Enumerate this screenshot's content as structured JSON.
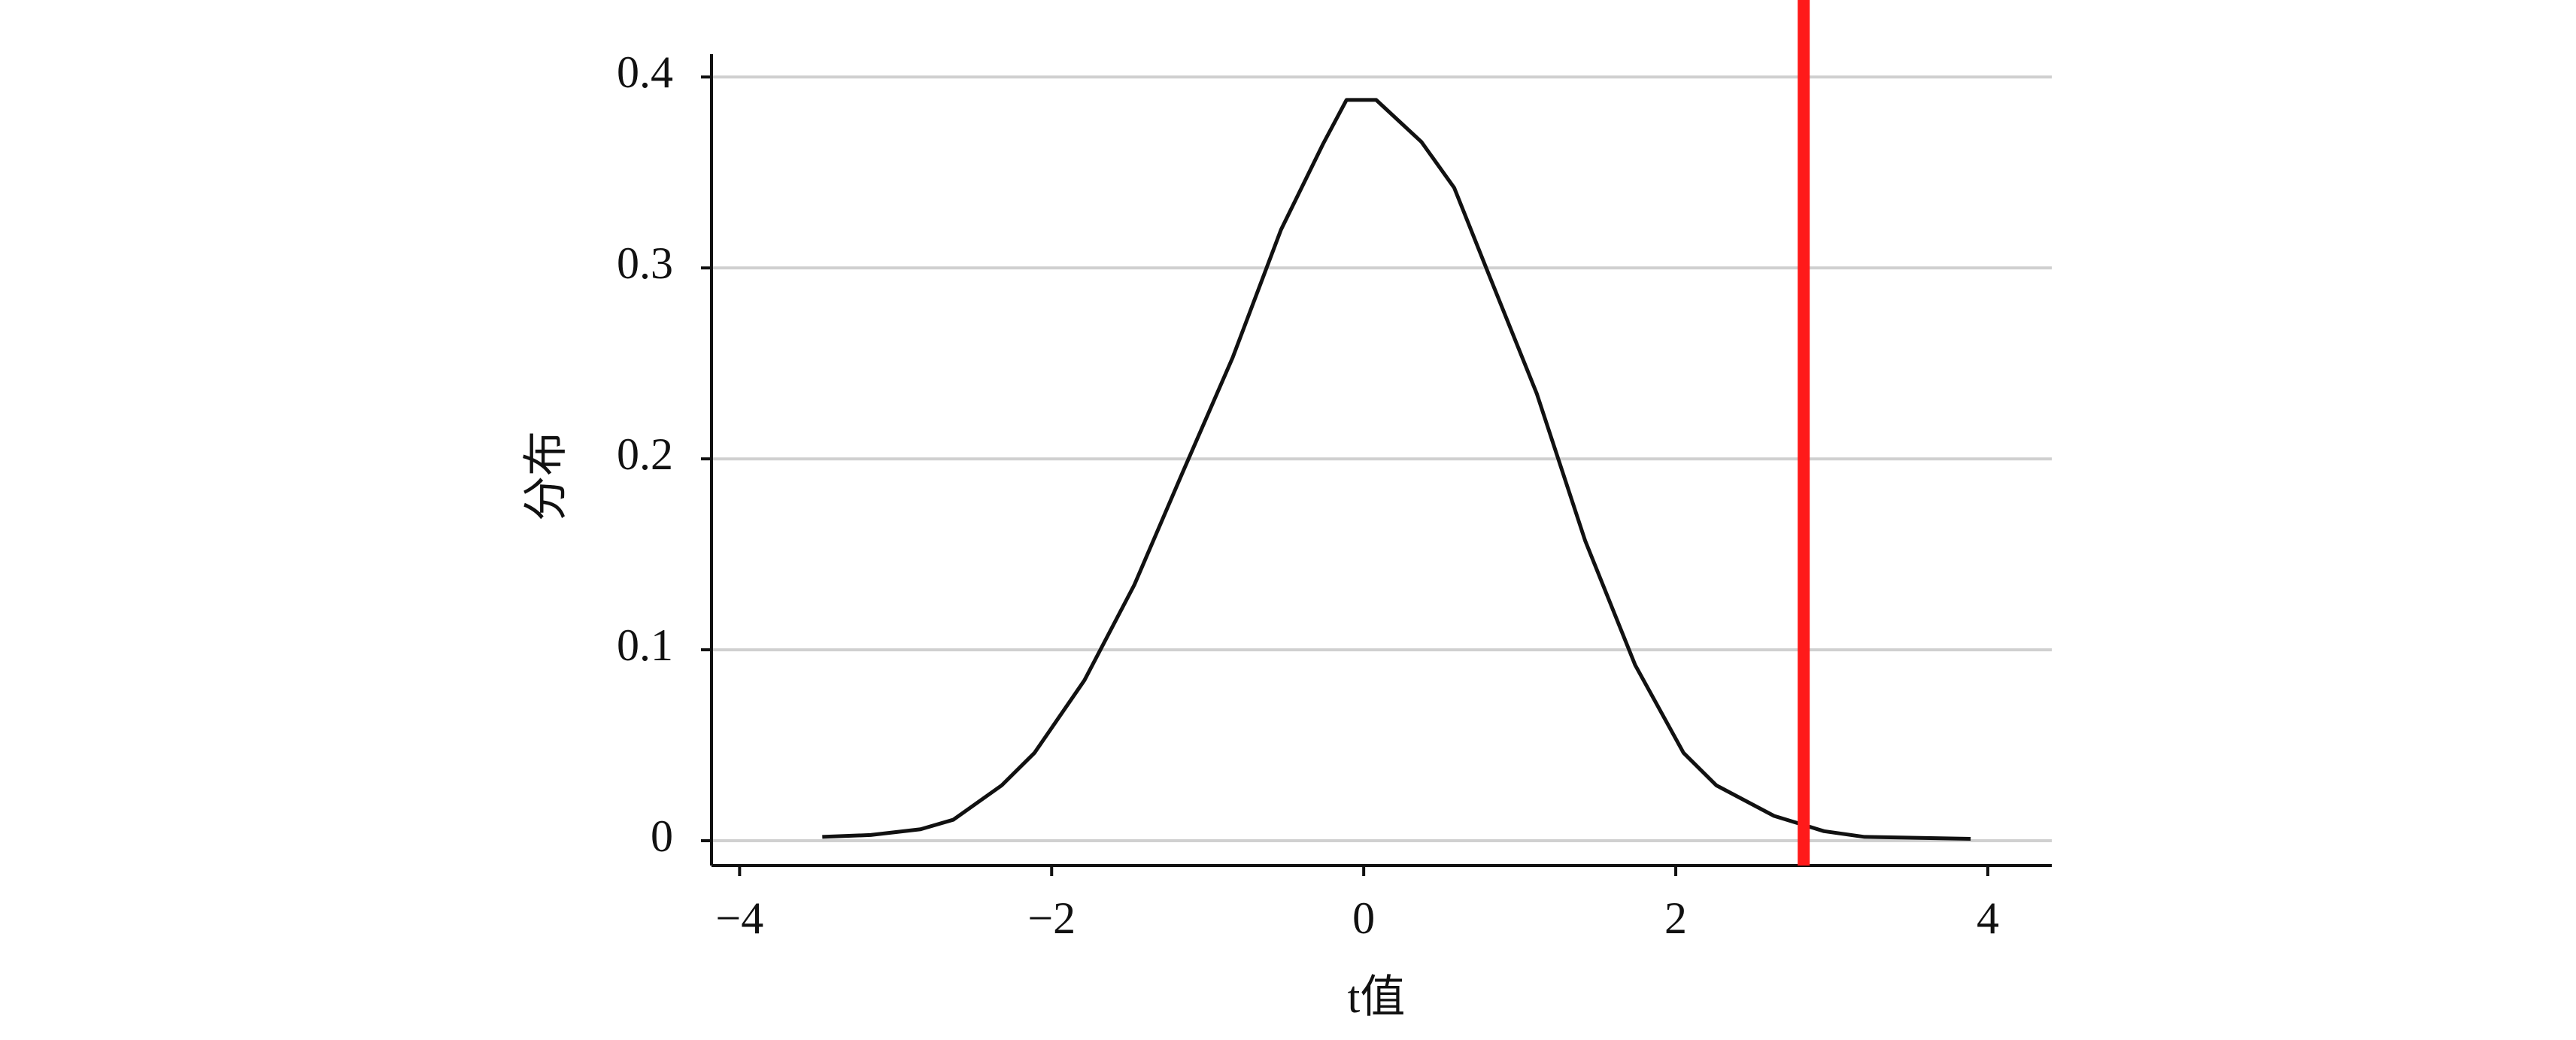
{
  "chart_data": {
    "type": "line",
    "x_label": "t值",
    "y_label": "分布",
    "x": [
      -3.47,
      -3.16,
      -2.84,
      -2.63,
      -2.32,
      -2.11,
      -1.79,
      -1.47,
      -1.16,
      -0.84,
      -0.53,
      -0.26,
      -0.11,
      0.08,
      0.37,
      0.58,
      0.79,
      1.11,
      1.42,
      1.74,
      2.05,
      2.26,
      2.63,
      2.95,
      3.21,
      3.89
    ],
    "series": [
      {
        "color": "#111111",
        "values": [
          0.002,
          0.003,
          0.006,
          0.011,
          0.029,
          0.046,
          0.084,
          0.134,
          0.193,
          0.253,
          0.32,
          0.365,
          0.388,
          0.388,
          0.366,
          0.342,
          0.299,
          0.234,
          0.157,
          0.092,
          0.046,
          0.029,
          0.013,
          0.005,
          0.002,
          0.001
        ]
      }
    ],
    "vline": {
      "x": 2.82,
      "color": "#ff1a1a"
    },
    "xlim": [
      -4.18,
      4.41
    ],
    "ylim": [
      -0.013,
      0.41
    ],
    "xticks": [
      {
        "value": -4,
        "label": "−4"
      },
      {
        "value": -2,
        "label": "−2"
      },
      0,
      2,
      4
    ],
    "yticks": [
      0,
      0.1,
      0.2,
      0.3,
      0.4
    ],
    "grid": true
  }
}
